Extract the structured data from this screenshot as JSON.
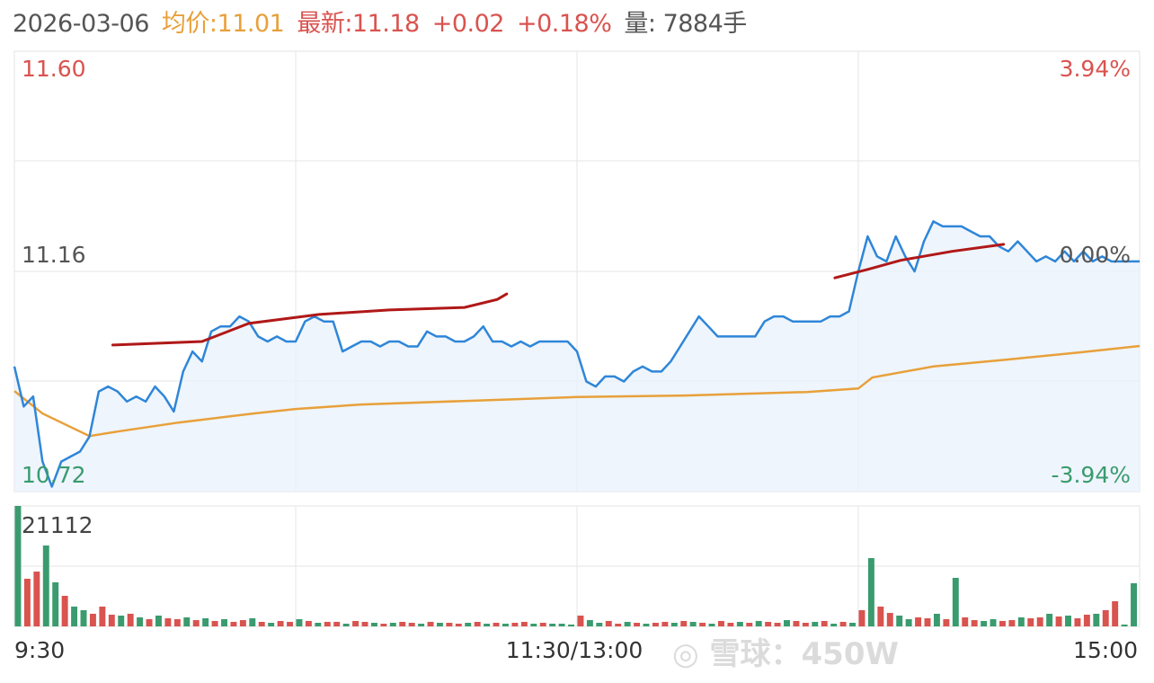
{
  "header": {
    "date": "2026-03-06",
    "avg_label": "均价:11.01",
    "latest_label": "最新:11.18",
    "change": "+0.02",
    "change_pct": "+0.18%",
    "volume_label": "量: 7884手"
  },
  "watermark": "雪球：450W",
  "colors": {
    "price_line": "#2f86d8",
    "avg_line": "#e8a03a",
    "up": "#d9534f",
    "down": "#3a9b6e",
    "annotation": "#b01818",
    "neutral": "#555555",
    "fill": "#eaf3fb"
  },
  "chart_data": {
    "type": "line",
    "price_axis": {
      "ylim": [
        10.72,
        11.6
      ],
      "ticks_left": [
        "11.60",
        "11.16",
        "10.72"
      ],
      "ticks_right": [
        "3.94%",
        "0.00%",
        "-3.94%"
      ],
      "prev_close": 11.16
    },
    "time_labels": [
      "9:30",
      "11:30/13:00",
      "15:00"
    ],
    "x_unit": "trading minutes (0-240)",
    "grid": true,
    "series": [
      {
        "key": "price",
        "minutes_step": 2,
        "values": [
          10.97,
          10.89,
          10.91,
          10.78,
          10.73,
          10.78,
          10.79,
          10.8,
          10.83,
          10.92,
          10.93,
          10.92,
          10.9,
          10.91,
          10.9,
          10.93,
          10.91,
          10.88,
          10.96,
          11.0,
          10.98,
          11.04,
          11.05,
          11.05,
          11.07,
          11.06,
          11.03,
          11.02,
          11.03,
          11.02,
          11.02,
          11.06,
          11.07,
          11.06,
          11.06,
          11.0,
          11.01,
          11.02,
          11.02,
          11.01,
          11.02,
          11.02,
          11.01,
          11.01,
          11.04,
          11.03,
          11.03,
          11.02,
          11.02,
          11.03,
          11.05,
          11.02,
          11.02,
          11.01,
          11.02,
          11.01,
          11.02,
          11.02,
          11.02,
          11.02,
          11.0,
          10.94,
          10.93,
          10.95,
          10.95,
          10.94,
          10.96,
          10.97,
          10.96,
          10.96,
          10.98,
          11.01,
          11.04,
          11.07,
          11.05,
          11.03,
          11.03,
          11.03,
          11.03,
          11.03,
          11.06,
          11.07,
          11.07,
          11.06,
          11.06,
          11.06,
          11.06,
          11.07,
          11.07,
          11.08,
          11.16,
          11.23,
          11.19,
          11.18,
          11.23,
          11.19,
          11.16,
          11.22,
          11.26,
          11.25,
          11.25,
          11.25,
          11.24,
          11.23,
          11.23,
          11.21,
          11.2,
          11.22,
          11.2,
          11.18,
          11.19,
          11.18,
          11.2,
          11.18,
          11.2,
          11.18,
          11.19,
          11.18,
          11.18,
          11.18,
          11.18
        ]
      },
      {
        "key": "avg",
        "points": [
          [
            0,
            10.921
          ],
          [
            6,
            10.876
          ],
          [
            16,
            10.831
          ],
          [
            22,
            10.84
          ],
          [
            35,
            10.858
          ],
          [
            51,
            10.876
          ],
          [
            60,
            10.885
          ],
          [
            74,
            10.894
          ],
          [
            102,
            10.903
          ],
          [
            120,
            10.909
          ],
          [
            143,
            10.912
          ],
          [
            169,
            10.919
          ],
          [
            180,
            10.926
          ],
          [
            183,
            10.948
          ],
          [
            196,
            10.97
          ],
          [
            212,
            10.984
          ],
          [
            227,
            10.998
          ],
          [
            240,
            11.011
          ]
        ]
      }
    ],
    "annotations": [
      {
        "type": "hand-drawn-line",
        "points": [
          [
            21,
            11.013
          ],
          [
            40,
            11.02
          ],
          [
            50,
            11.056
          ],
          [
            65,
            11.074
          ],
          [
            80,
            11.083
          ],
          [
            96,
            11.088
          ],
          [
            103,
            11.104
          ],
          [
            105,
            11.115
          ]
        ]
      },
      {
        "type": "hand-drawn-line",
        "points": [
          [
            175,
            11.147
          ],
          [
            182,
            11.164
          ],
          [
            189,
            11.182
          ],
          [
            200,
            11.2
          ],
          [
            211,
            11.214
          ]
        ]
      }
    ],
    "volume": {
      "max_label": "21112",
      "ylim": [
        0,
        21112
      ],
      "values": [
        21112,
        8350,
        9610,
        14180,
        7720,
        5360,
        3470,
        2840,
        2210,
        3470,
        2050,
        1890,
        2210,
        1580,
        1260,
        1890,
        1420,
        1260,
        1580,
        1100,
        1420,
        950,
        1260,
        790,
        1100,
        1420,
        790,
        630,
        950,
        790,
        1260,
        950,
        630,
        790,
        790,
        470,
        950,
        790,
        630,
        470,
        630,
        790,
        630,
        470,
        790,
        630,
        630,
        470,
        630,
        790,
        470,
        630,
        470,
        630,
        790,
        470,
        630,
        470,
        470,
        320,
        1890,
        1100,
        630,
        950,
        470,
        790,
        630,
        470,
        630,
        790,
        630,
        950,
        790,
        630,
        470,
        950,
        630,
        790,
        630,
        950,
        790,
        630,
        1100,
        950,
        630,
        790,
        950,
        470,
        790,
        630,
        2840,
        11970,
        3470,
        2360,
        1890,
        1260,
        1580,
        1420,
        2210,
        1260,
        8510,
        1580,
        1100,
        950,
        1260,
        950,
        1100,
        1580,
        1420,
        1580,
        2210,
        1730,
        1890,
        1420,
        2050,
        2210,
        2840,
        4410,
        320,
        7560
      ],
      "directions": "grrggrggrrrgrgrgrrgrgrgrrgrgrrgrgrrgrrgrgrrgrgrrgrgrgrrgrgggrggrrgrgrrgrgrgrrgrgrrgrrgrgrgrgrrggrrgrgrrggrrgrrgrgrrgrr"
    }
  }
}
